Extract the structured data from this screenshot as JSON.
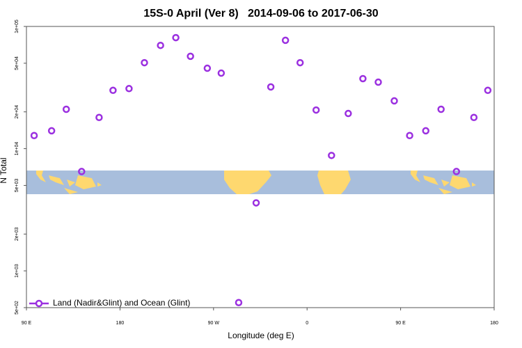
{
  "chart_data": {
    "type": "scatter",
    "title": "15S-0 April (Ver 8)   2014-09-06 to 2017-06-30",
    "xlabel": "Longitude (deg E)",
    "ylabel": "N Total",
    "log_y": true,
    "xlim": [
      90,
      540
    ],
    "ylim": [
      500,
      100000
    ],
    "xticks": [
      {
        "value": 90,
        "label": "90 E"
      },
      {
        "value": 180,
        "label": "180"
      },
      {
        "value": 270,
        "label": "90 W"
      },
      {
        "value": 360,
        "label": "0"
      },
      {
        "value": 450,
        "label": "90 E"
      },
      {
        "value": 540,
        "label": "180"
      }
    ],
    "yticks": [
      {
        "value": 500,
        "label": "5e+02"
      },
      {
        "value": 1000,
        "label": "1e+03"
      },
      {
        "value": 2000,
        "label": "2e+03"
      },
      {
        "value": 5000,
        "label": "5e+03"
      },
      {
        "value": 10000,
        "label": "1e+04"
      },
      {
        "value": 20000,
        "label": "2e+04"
      },
      {
        "value": 50000,
        "label": "5e+04"
      },
      {
        "value": 100000,
        "label": "1e+05"
      }
    ],
    "legend": "bottom-left",
    "series": [
      {
        "name": "Land (Nadir&Glint) and Ocean (Glint)",
        "color": "#9b30e0",
        "x": [
          97.4,
          114.2,
          128.3,
          143.1,
          159.9,
          173.3,
          188.7,
          203.5,
          219,
          233.7,
          247.8,
          264,
          277.4,
          294.2,
          311,
          325.1,
          339.2,
          353.3,
          368.7,
          383.5,
          399.6,
          413.7,
          428.5,
          443.9,
          458.7,
          474.2,
          488.9,
          503.7,
          520.5,
          533.9
        ],
        "values": [
          12800,
          14000,
          21000,
          6500,
          18000,
          30000,
          31000,
          50500,
          70000,
          81000,
          57000,
          45500,
          41500,
          550,
          3600,
          32000,
          77000,
          50500,
          20700,
          8800,
          19400,
          37400,
          35000,
          24600,
          12800,
          14000,
          21000,
          6500,
          18000,
          30000
        ]
      }
    ]
  }
}
